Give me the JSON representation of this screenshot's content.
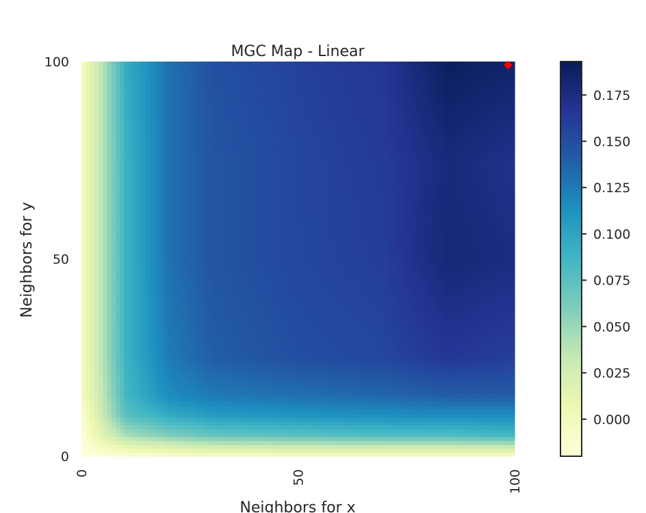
{
  "chart_data": [
    {
      "type": "heatmap",
      "title": "MGC Map - Linear",
      "xlabel": "Neighbors for x",
      "ylabel": "Neighbors for y",
      "x_ticks": [
        "0",
        "50",
        "100"
      ],
      "y_ticks": [
        "0",
        "50",
        "100"
      ],
      "x_range": [
        0,
        100
      ],
      "y_range": [
        0,
        100
      ],
      "grid": false,
      "colormap": "YlGnBu",
      "colormap_stops": [
        "#ffffd9",
        "#edf8b1",
        "#c7e9b4",
        "#7fcdbb",
        "#41b6c4",
        "#1d91c0",
        "#225ea8",
        "#253494",
        "#081d58"
      ],
      "value_range": [
        -0.02,
        0.193
      ],
      "colorbar": {
        "ticks": [
          "0.000",
          "0.025",
          "0.050",
          "0.075",
          "0.100",
          "0.125",
          "0.150",
          "0.175"
        ],
        "tick_values": [
          0.0,
          0.025,
          0.05,
          0.075,
          0.1,
          0.125,
          0.15,
          0.175
        ]
      },
      "grid_samples": {
        "neighbors_x": [
          0,
          5,
          10,
          20,
          30,
          50,
          70,
          85,
          100
        ],
        "neighbors_y": [
          0,
          5,
          10,
          15,
          25,
          50,
          75,
          100
        ],
        "values": [
          [
            -0.02,
            -0.015,
            -0.01,
            -0.005,
            0.0,
            0.0,
            0.0,
            0.0,
            0.0
          ],
          [
            -0.015,
            0.02,
            0.045,
            0.06,
            0.07,
            0.075,
            0.08,
            0.08,
            0.085
          ],
          [
            -0.01,
            0.035,
            0.075,
            0.095,
            0.105,
            0.11,
            0.113,
            0.115,
            0.115
          ],
          [
            0.0,
            0.04,
            0.085,
            0.115,
            0.125,
            0.13,
            0.135,
            0.14,
            0.14
          ],
          [
            0.0,
            0.045,
            0.09,
            0.125,
            0.14,
            0.15,
            0.155,
            0.165,
            0.16
          ],
          [
            0.0,
            0.045,
            0.09,
            0.13,
            0.145,
            0.155,
            0.16,
            0.18,
            0.175
          ],
          [
            0.0,
            0.045,
            0.09,
            0.13,
            0.145,
            0.155,
            0.162,
            0.178,
            0.17
          ],
          [
            0.0,
            0.045,
            0.095,
            0.13,
            0.148,
            0.158,
            0.165,
            0.19,
            0.185
          ]
        ]
      },
      "optimal_point": {
        "neighbors_x": 100,
        "neighbors_y": 100,
        "color": "#ff0000"
      }
    }
  ]
}
